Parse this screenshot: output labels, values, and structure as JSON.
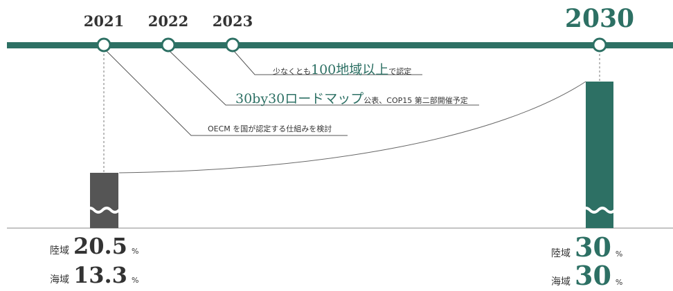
{
  "timeline": {
    "years": [
      "2021",
      "2022",
      "2023",
      "2030"
    ],
    "line_color": "#2d7064"
  },
  "notes": {
    "n2023": {
      "prefix": "少なくとも",
      "emphasis": "100地域以上",
      "suffix": "で認定"
    },
    "n2022": {
      "emphasis": "30by30ロードマップ",
      "suffix": "公表、COP15 第二部開催予定"
    },
    "n2021": {
      "text": "OECM を国が認定する仕組みを検討"
    }
  },
  "chart_data": {
    "type": "bar",
    "categories": [
      "2021",
      "2030"
    ],
    "series": [
      {
        "name": "陸域",
        "values": [
          20.5,
          30
        ]
      },
      {
        "name": "海域",
        "values": [
          13.3,
          30
        ]
      }
    ],
    "unit": "%",
    "colors": {
      "2021": "#555555",
      "2030": "#2d7064"
    }
  },
  "stats": {
    "y2021": {
      "land_label": "陸域",
      "land_value": "20.5",
      "land_unit": "%",
      "sea_label": "海域",
      "sea_value": "13.3",
      "sea_unit": "%"
    },
    "y2030": {
      "land_label": "陸域",
      "land_value": "30",
      "land_unit": "%",
      "sea_label": "海域",
      "sea_value": "30",
      "sea_unit": "%"
    }
  }
}
